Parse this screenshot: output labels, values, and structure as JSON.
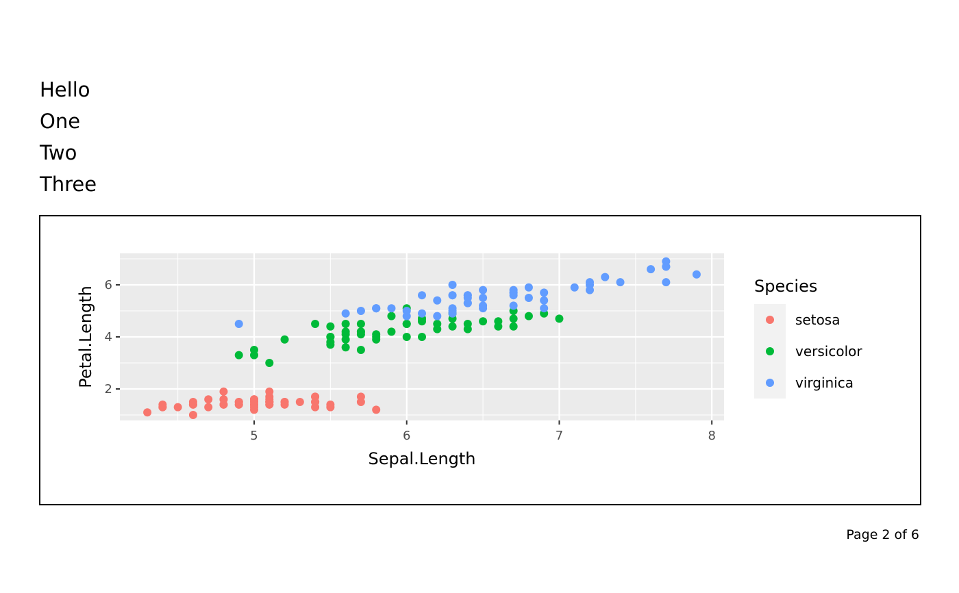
{
  "text_lines": [
    "Hello",
    "One",
    "Two",
    "Three"
  ],
  "footer": {
    "page_label": "Page 2 of 6"
  },
  "chart_data": {
    "type": "scatter",
    "xlabel": "Sepal.Length",
    "ylabel": "Petal.Length",
    "xlim": [
      4.12,
      8.08
    ],
    "ylim": [
      0.79,
      7.21
    ],
    "xticks": [
      5,
      6,
      7,
      8
    ],
    "yticks": [
      2,
      4,
      6
    ],
    "x_minor": [
      4.5,
      5.5,
      6.5,
      7.5
    ],
    "y_minor": [
      1,
      3,
      5,
      7
    ],
    "grid": true,
    "legend": {
      "title": "Species",
      "position": "right"
    },
    "colors": {
      "panel": "#EBEBEB",
      "grid": "#FFFFFF",
      "axis_text": "#4D4D4D",
      "legend_key": "#F2F2F2"
    },
    "series": [
      {
        "name": "setosa",
        "color": "#F8766D",
        "x": [
          5.1,
          4.9,
          4.7,
          4.6,
          5.0,
          5.4,
          4.6,
          5.0,
          4.4,
          4.9,
          5.4,
          4.8,
          4.8,
          4.3,
          5.8,
          5.7,
          5.4,
          5.1,
          5.7,
          5.1,
          5.4,
          5.1,
          4.6,
          5.1,
          4.8,
          5.0,
          5.0,
          5.2,
          5.2,
          4.7,
          4.8,
          5.4,
          5.2,
          5.5,
          4.9,
          5.0,
          5.5,
          4.9,
          4.4,
          5.1,
          5.0,
          4.5,
          4.4,
          5.0,
          5.1,
          4.8,
          5.1,
          4.6,
          5.3,
          5.0
        ],
        "y": [
          1.4,
          1.4,
          1.3,
          1.5,
          1.4,
          1.7,
          1.4,
          1.5,
          1.4,
          1.5,
          1.5,
          1.6,
          1.4,
          1.1,
          1.2,
          1.5,
          1.3,
          1.4,
          1.7,
          1.5,
          1.7,
          1.5,
          1.0,
          1.7,
          1.9,
          1.6,
          1.6,
          1.5,
          1.4,
          1.6,
          1.6,
          1.5,
          1.5,
          1.4,
          1.5,
          1.2,
          1.3,
          1.4,
          1.3,
          1.5,
          1.3,
          1.3,
          1.3,
          1.6,
          1.9,
          1.4,
          1.6,
          1.4,
          1.5,
          1.4
        ]
      },
      {
        "name": "versicolor",
        "color": "#00BA38",
        "x": [
          7.0,
          6.4,
          6.9,
          5.5,
          6.5,
          5.7,
          6.3,
          4.9,
          6.6,
          5.2,
          5.0,
          5.9,
          6.0,
          6.1,
          5.6,
          6.7,
          5.6,
          5.8,
          6.2,
          5.6,
          5.9,
          6.1,
          6.3,
          6.1,
          6.4,
          6.6,
          6.8,
          6.7,
          6.0,
          5.7,
          5.5,
          5.5,
          5.8,
          6.0,
          5.4,
          6.0,
          6.7,
          6.3,
          5.6,
          5.5,
          5.5,
          6.1,
          5.8,
          5.0,
          5.6,
          5.7,
          5.7,
          6.2,
          5.1,
          5.7
        ],
        "y": [
          4.7,
          4.5,
          4.9,
          4.0,
          4.6,
          4.5,
          4.7,
          3.3,
          4.6,
          3.9,
          3.5,
          4.2,
          4.0,
          4.7,
          3.6,
          4.4,
          4.5,
          4.1,
          4.5,
          3.9,
          4.8,
          4.0,
          4.9,
          4.7,
          4.3,
          4.4,
          4.8,
          5.0,
          4.5,
          3.5,
          3.8,
          3.7,
          3.9,
          5.1,
          4.5,
          4.5,
          4.7,
          4.4,
          4.1,
          4.0,
          4.4,
          4.6,
          4.0,
          3.3,
          4.2,
          4.2,
          4.2,
          4.3,
          3.0,
          4.1
        ]
      },
      {
        "name": "virginica",
        "color": "#619CFF",
        "x": [
          6.3,
          5.8,
          7.1,
          6.3,
          6.5,
          7.6,
          4.9,
          7.3,
          6.7,
          7.2,
          6.5,
          6.4,
          6.8,
          5.7,
          5.8,
          6.4,
          6.5,
          7.7,
          7.7,
          6.0,
          6.9,
          5.6,
          7.7,
          6.3,
          6.7,
          7.2,
          6.2,
          6.1,
          6.4,
          7.2,
          7.4,
          7.9,
          6.4,
          6.3,
          6.1,
          7.7,
          6.3,
          6.4,
          6.0,
          6.9,
          6.7,
          6.9,
          5.8,
          6.8,
          6.7,
          6.7,
          6.3,
          6.5,
          6.2,
          5.9
        ],
        "y": [
          6.0,
          5.1,
          5.9,
          5.6,
          5.8,
          6.6,
          4.5,
          6.3,
          5.8,
          6.1,
          5.1,
          5.3,
          5.5,
          5.0,
          5.1,
          5.3,
          5.5,
          6.7,
          6.9,
          5.0,
          5.7,
          4.9,
          6.7,
          4.9,
          5.7,
          6.0,
          4.8,
          4.9,
          5.6,
          5.8,
          6.1,
          6.4,
          5.6,
          5.1,
          5.6,
          6.1,
          5.6,
          5.5,
          4.8,
          5.4,
          5.6,
          5.1,
          5.1,
          5.9,
          5.7,
          5.2,
          5.0,
          5.2,
          5.4,
          5.1
        ]
      }
    ]
  }
}
